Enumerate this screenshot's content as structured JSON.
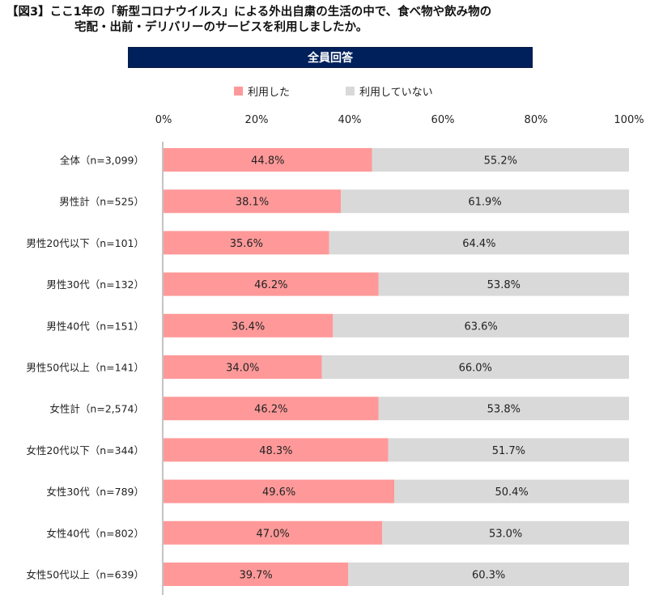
{
  "title": {
    "line1": "【図3】ここ1年の「新型コロナウイルス」による外出自粛の生活の中で、食べ物や飲み物の",
    "line2": "宅配・出前・デリバリーのサービスを利用しましたか。"
  },
  "banner": "全員回答",
  "colors": {
    "used": "#ff9999",
    "not_used": "#d9d9d9",
    "banner": "#00205b"
  },
  "chart_data": {
    "type": "bar",
    "orientation": "horizontal",
    "stacked": true,
    "x_ticks": [
      "0%",
      "20%",
      "40%",
      "60%",
      "80%",
      "100%"
    ],
    "xlim": [
      0,
      100
    ],
    "categories": [
      "全体（n=3,099）",
      "男性計（n=525）",
      "男性20代以下（n=101）",
      "男性30代（n=132）",
      "男性40代（n=151）",
      "男性50代以上（n=141）",
      "女性計（n=2,574）",
      "女性20代以下（n=344）",
      "女性30代（n=789）",
      "女性40代（n=802）",
      "女性50代以上（n=639）"
    ],
    "series": [
      {
        "name": "利用した",
        "values": [
          44.8,
          38.1,
          35.6,
          46.2,
          36.4,
          34.0,
          46.2,
          48.3,
          49.6,
          47.0,
          39.7
        ],
        "labels": [
          "44.8%",
          "38.1%",
          "35.6%",
          "46.2%",
          "36.4%",
          "34.0%",
          "46.2%",
          "48.3%",
          "49.6%",
          "47.0%",
          "39.7%"
        ]
      },
      {
        "name": "利用していない",
        "values": [
          55.2,
          61.9,
          64.4,
          53.8,
          63.6,
          66.0,
          53.8,
          51.7,
          50.4,
          53.0,
          60.3
        ],
        "labels": [
          "55.2%",
          "61.9%",
          "64.4%",
          "53.8%",
          "63.6%",
          "66.0%",
          "53.8%",
          "51.7%",
          "50.4%",
          "53.0%",
          "60.3%"
        ]
      }
    ],
    "legend_position": "top"
  }
}
